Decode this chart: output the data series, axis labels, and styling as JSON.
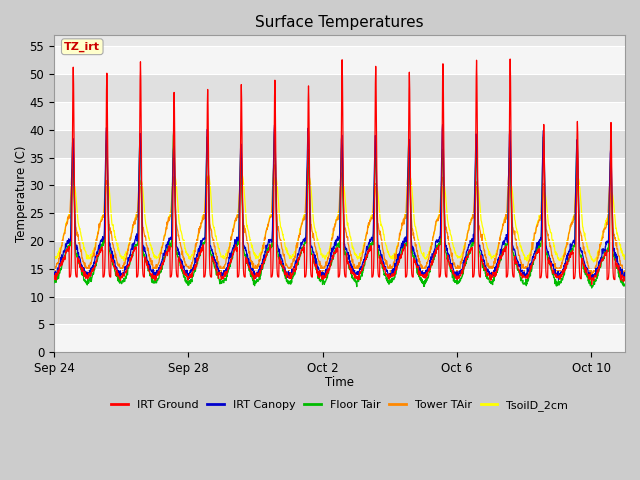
{
  "title": "Surface Temperatures",
  "xlabel": "Time",
  "ylabel": "Temperature (C)",
  "ylim": [
    0,
    57
  ],
  "yticks": [
    0,
    5,
    10,
    15,
    20,
    25,
    30,
    35,
    40,
    45,
    50,
    55
  ],
  "xtick_labels": [
    "Sep 24",
    "Sep 28",
    "Oct 2",
    "Oct 6",
    "Oct 10"
  ],
  "xtick_positions": [
    0,
    4,
    8,
    12,
    16
  ],
  "legend_entries": [
    "IRT Ground",
    "IRT Canopy",
    "Floor Tair",
    "Tower TAir",
    "TsoilD_2cm"
  ],
  "legend_colors": [
    "#ff0000",
    "#0000cc",
    "#00bb00",
    "#ff8800",
    "#ffff00"
  ],
  "line_colors": {
    "irt_ground": "#ff0000",
    "irt_canopy": "#0000cc",
    "floor_tair": "#00bb00",
    "tower_tair": "#ff8800",
    "tsoil_2cm": "#ffff00"
  },
  "annotation_text": "TZ_irt",
  "annotation_color": "#cc0000",
  "annotation_bg": "#ffffcc",
  "fig_bg_color": "#cccccc",
  "plot_bg_color": "#e8e8e8",
  "grid_color": "#ffffff",
  "n_days": 17,
  "points_per_day": 96
}
